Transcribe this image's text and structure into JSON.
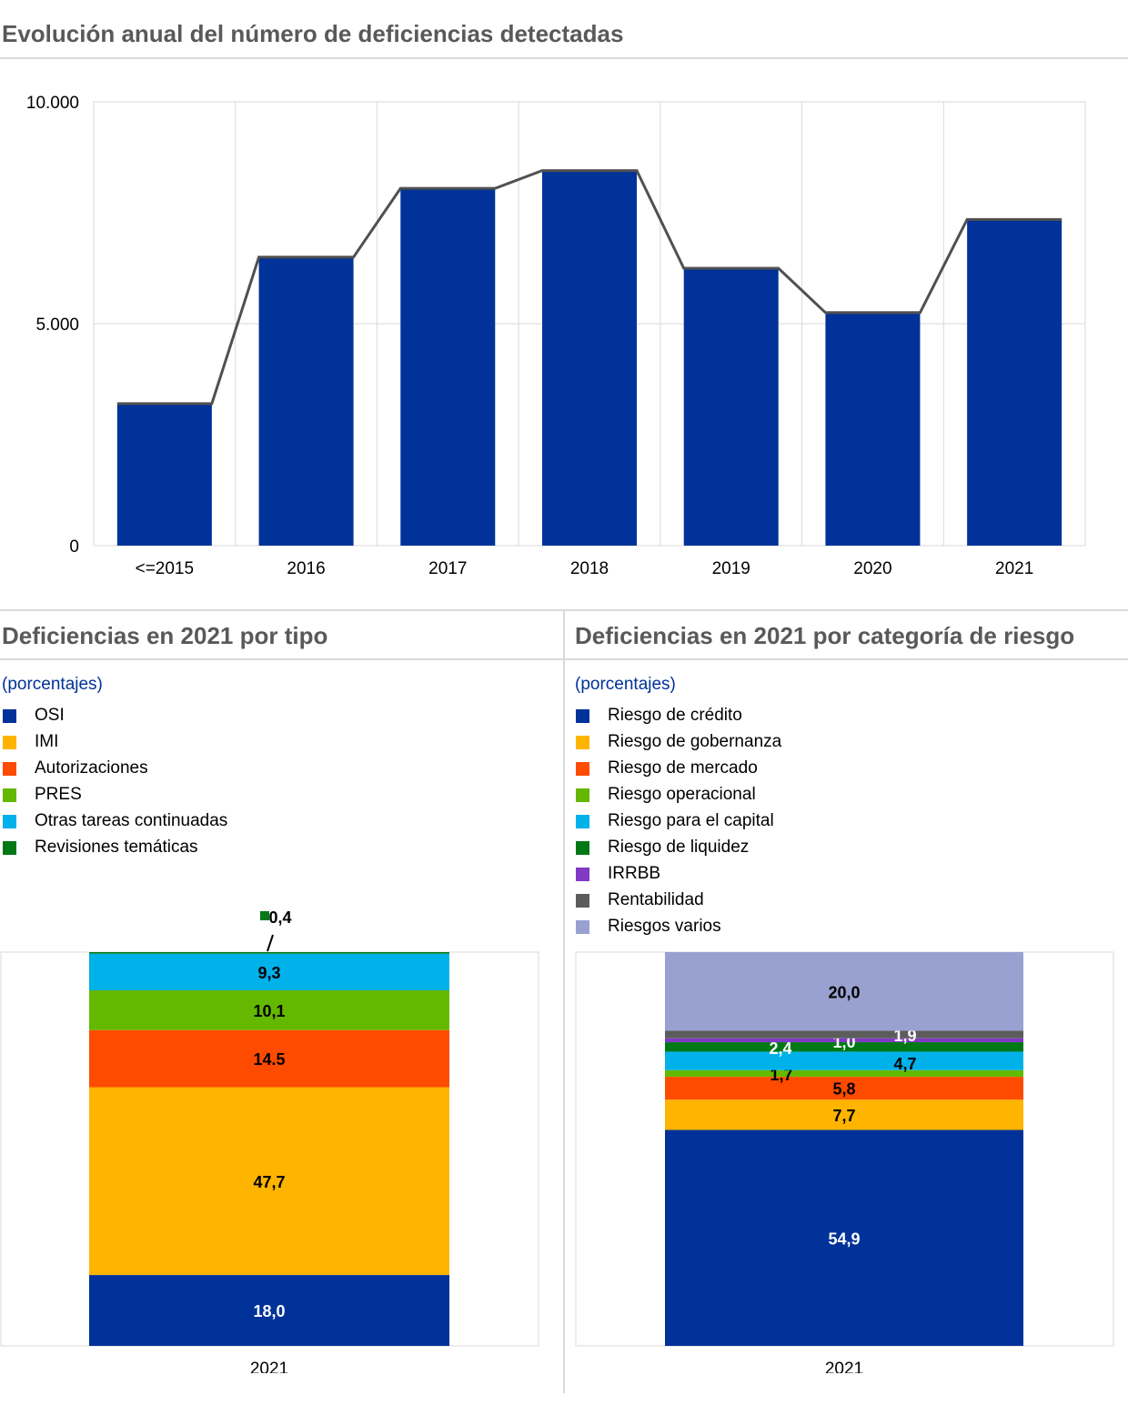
{
  "colors": {
    "bar": "#003299",
    "line": "#505050",
    "grid": "#d9d9d9",
    "title": "#595959",
    "subtitle": "#003299"
  },
  "chart_data": [
    {
      "id": "annual",
      "type": "bar",
      "title": "Evolución anual del número de deficiencias detectadas",
      "categories": [
        "<=2015",
        "2016",
        "2017",
        "2018",
        "2019",
        "2020",
        "2021"
      ],
      "values": [
        3200,
        6500,
        8050,
        8450,
        6250,
        5250,
        7350
      ],
      "line_overlay": true,
      "ylim": [
        0,
        10000
      ],
      "yticks": [
        0,
        5000,
        10000
      ],
      "ytick_labels": [
        "0",
        "5.000",
        "10.000"
      ],
      "grid": true
    },
    {
      "id": "tipo",
      "type": "bar",
      "stacked": true,
      "title": "Deficiencias en 2021 por tipo",
      "subtitle": "(porcentajes)",
      "categories": [
        "2021"
      ],
      "series": [
        {
          "name": "OSI",
          "values": [
            18.0
          ],
          "label": "18,0",
          "color": "#003299",
          "label_color": "#ffffff"
        },
        {
          "name": "IMI",
          "values": [
            47.7
          ],
          "label": "47,7",
          "color": "#ffb400",
          "label_color": "#000000"
        },
        {
          "name": "Autorizaciones",
          "values": [
            14.5
          ],
          "label": "14.5",
          "color": "#ff4b00",
          "label_color": "#000000"
        },
        {
          "name": "PRES",
          "values": [
            10.1
          ],
          "label": "10,1",
          "color": "#65b800",
          "label_color": "#000000"
        },
        {
          "name": "Otras tareas continuadas",
          "values": [
            9.3
          ],
          "label": "9,3",
          "color": "#00b1ea",
          "label_color": "#000000"
        },
        {
          "name": "Revisiones temáticas",
          "values": [
            0.4
          ],
          "label": "0,4",
          "color": "#007816",
          "label_color": "#000000",
          "callout": true
        }
      ],
      "ylim": [
        0,
        100
      ],
      "legend_position": "top-left"
    },
    {
      "id": "riesgo",
      "type": "bar",
      "stacked": true,
      "title": "Deficiencias en 2021 por categoría de riesgo",
      "subtitle": "(porcentajes)",
      "categories": [
        "2021"
      ],
      "series": [
        {
          "name": "Riesgo de crédito",
          "values": [
            54.9
          ],
          "label": "54,9",
          "color": "#003299",
          "label_color": "#ffffff"
        },
        {
          "name": "Riesgo de gobernanza",
          "values": [
            7.7
          ],
          "label": "7,7",
          "color": "#ffb400",
          "label_color": "#000000"
        },
        {
          "name": "Riesgo de mercado",
          "values": [
            5.8
          ],
          "label": "5,8",
          "color": "#ff4b00",
          "label_color": "#000000"
        },
        {
          "name": "Riesgo operacional",
          "values": [
            1.7
          ],
          "label": "1,7",
          "color": "#65b800",
          "label_color": "#000000"
        },
        {
          "name": "Riesgo para el capital",
          "values": [
            4.7
          ],
          "label": "4,7",
          "color": "#00b1ea",
          "label_color": "#000000"
        },
        {
          "name": "Riesgo de liquidez",
          "values": [
            2.4
          ],
          "label": "2,4",
          "color": "#007816",
          "label_color": "#ffffff"
        },
        {
          "name": "IRRBB",
          "values": [
            1.0
          ],
          "label": "1,0",
          "color": "#8139c6",
          "label_color": "#ffffff"
        },
        {
          "name": "Rentabilidad",
          "values": [
            1.9
          ],
          "label": "1,9",
          "color": "#5c5c5c",
          "label_color": "#ffffff"
        },
        {
          "name": "Riesgos varios",
          "values": [
            20.0
          ],
          "label": "20,0",
          "color": "#98a1d0",
          "label_color": "#000000"
        }
      ],
      "ylim": [
        0,
        100
      ],
      "legend_position": "top-left"
    }
  ]
}
